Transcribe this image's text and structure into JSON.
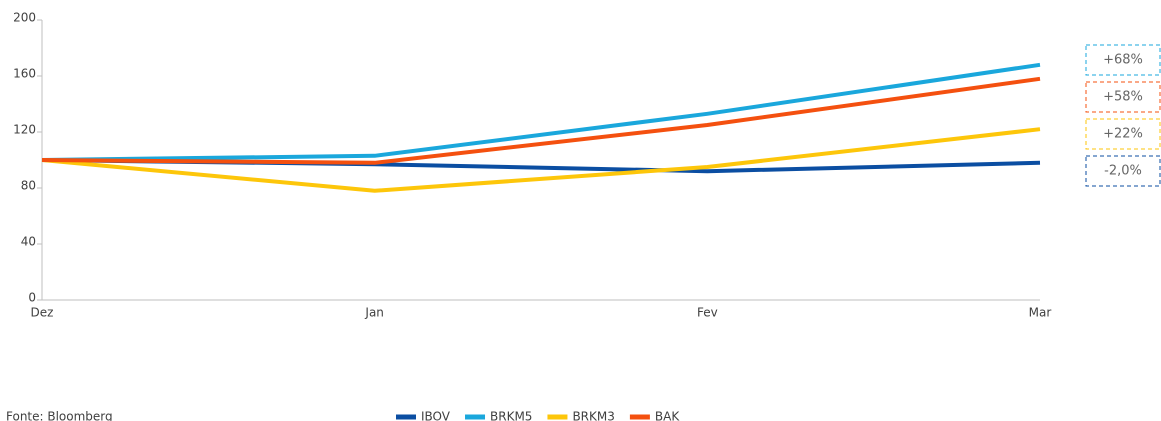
{
  "chart_data": {
    "type": "line",
    "categories": [
      "Dez",
      "Jan",
      "Fev",
      "Mar"
    ],
    "series": [
      {
        "name": "IBOV",
        "color": "#0b4ea2",
        "values": [
          100,
          97,
          92,
          98
        ]
      },
      {
        "name": "BRKM5",
        "color": "#1aa7dc",
        "values": [
          100,
          103,
          133,
          168
        ]
      },
      {
        "name": "BRKM3",
        "color": "#fdc60a",
        "values": [
          100,
          78,
          95,
          122
        ]
      },
      {
        "name": "BAK",
        "color": "#f4500f",
        "values": [
          100,
          98,
          125,
          158
        ]
      }
    ],
    "ylim": [
      0,
      200
    ],
    "yticks": [
      0,
      40,
      80,
      120,
      160,
      200
    ],
    "annotations": [
      {
        "text": "+68%",
        "color": "#1aa7dc"
      },
      {
        "text": "+58%",
        "color": "#f4500f"
      },
      {
        "text": "+22%",
        "color": "#fdc60a"
      },
      {
        "text": "-2,0%",
        "color": "#0b4ea2"
      }
    ],
    "source": "Fonte: Bloomberg",
    "legend": "bottom"
  }
}
